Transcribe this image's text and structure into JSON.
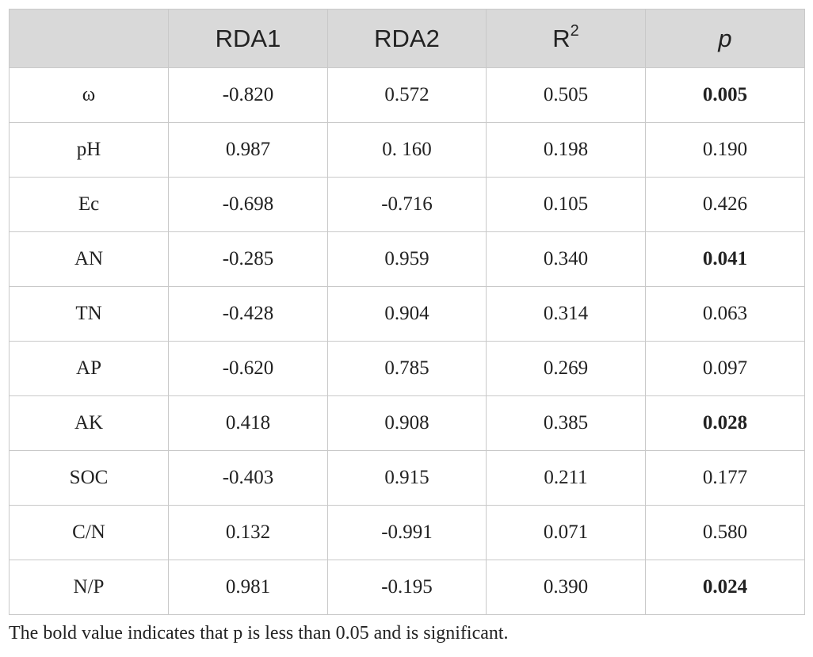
{
  "table": {
    "headers": [
      "",
      "RDA1",
      "RDA2",
      "R",
      "p"
    ],
    "r2_superscript": "2",
    "rows": [
      {
        "label": "ω",
        "rda1": "-0.820",
        "rda2": "0.572",
        "r2": "0.505",
        "p": "0.005",
        "p_bold": true
      },
      {
        "label": "pH",
        "rda1": "0.987",
        "rda2": "0. 160",
        "r2": "0.198",
        "p": "0.190",
        "p_bold": false
      },
      {
        "label": "Ec",
        "rda1": "-0.698",
        "rda2": "-0.716",
        "r2": "0.105",
        "p": "0.426",
        "p_bold": false
      },
      {
        "label": "AN",
        "rda1": "-0.285",
        "rda2": "0.959",
        "r2": "0.340",
        "p": "0.041",
        "p_bold": true
      },
      {
        "label": "TN",
        "rda1": "-0.428",
        "rda2": "0.904",
        "r2": "0.314",
        "p": "0.063",
        "p_bold": false
      },
      {
        "label": "AP",
        "rda1": "-0.620",
        "rda2": "0.785",
        "r2": "0.269",
        "p": "0.097",
        "p_bold": false
      },
      {
        "label": "AK",
        "rda1": "0.418",
        "rda2": "0.908",
        "r2": "0.385",
        "p": "0.028",
        "p_bold": true
      },
      {
        "label": "SOC",
        "rda1": "-0.403",
        "rda2": "0.915",
        "r2": "0.211",
        "p": "0.177",
        "p_bold": false
      },
      {
        "label": "C/N",
        "rda1": "0.132",
        "rda2": "-0.991",
        "r2": "0.071",
        "p": "0.580",
        "p_bold": false
      },
      {
        "label": "N/P",
        "rda1": "0.981",
        "rda2": "-0.195",
        "r2": "0.390",
        "p": "0.024",
        "p_bold": true
      }
    ]
  },
  "footnote": "The bold value indicates that p is less than 0.05 and is significant.",
  "colors": {
    "header_bg": "#d9d9d9",
    "border": "#c9c9c9",
    "text": "#222222"
  }
}
